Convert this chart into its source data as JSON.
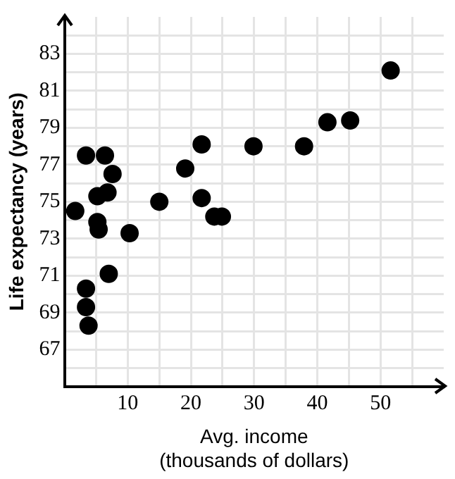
{
  "chart_data": {
    "type": "scatter",
    "xlabel": "Avg. income\n(thousands of dollars)",
    "ylabel": "Life expectancy (years)",
    "x": [
      1.7,
      3.4,
      6.4,
      7.6,
      6.8,
      5.2,
      5.2,
      5.4,
      10.3,
      15,
      19.1,
      21.7,
      21.7,
      23.7,
      24.9,
      7,
      3.4,
      3.4,
      3.8,
      29.9,
      37.9,
      41.6,
      45.2,
      51.6
    ],
    "values": [
      74.5,
      77.5,
      77.5,
      76.5,
      75.5,
      75.3,
      73.9,
      73.5,
      73.3,
      75,
      76.8,
      78.1,
      75.2,
      74.2,
      74.2,
      71.1,
      70.3,
      69.3,
      68.3,
      78,
      78,
      79.3,
      79.4,
      82.1
    ],
    "color": "#000000",
    "marker": "circle",
    "grid": true,
    "xlim": [
      0,
      60
    ],
    "xticks": [
      {
        "value": 5,
        "label": null
      },
      10,
      {
        "value": 15,
        "label": null
      },
      20,
      {
        "value": 25,
        "label": null
      },
      30,
      {
        "value": 35,
        "label": null
      },
      40,
      {
        "value": 45,
        "label": null
      },
      50,
      {
        "value": 55,
        "label": null
      }
    ],
    "ylim": [
      65,
      85
    ],
    "yticks": [
      {
        "value": 66,
        "label": null
      },
      67,
      {
        "value": 68,
        "label": null
      },
      69,
      {
        "value": 70,
        "label": null
      },
      71,
      {
        "value": 72,
        "label": null
      },
      73,
      {
        "value": 74,
        "label": null
      },
      75,
      {
        "value": 76,
        "label": null
      },
      77,
      {
        "value": 78,
        "label": null
      },
      79,
      {
        "value": 80,
        "label": null
      },
      81,
      {
        "value": 82,
        "label": null
      },
      83,
      {
        "value": 84,
        "label": null
      }
    ]
  }
}
